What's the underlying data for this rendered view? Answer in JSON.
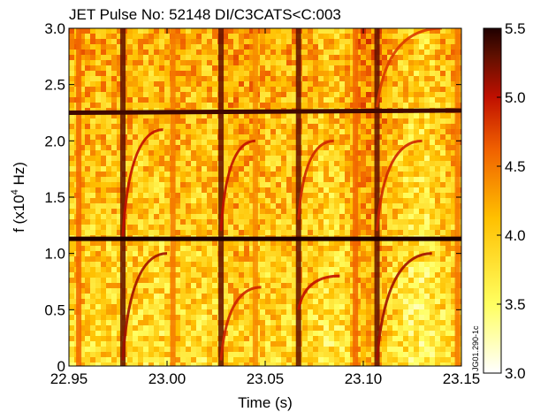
{
  "chart_data": {
    "type": "heatmap",
    "title": "JET Pulse No: 52148 DI/C3CATS<C:003",
    "xlabel": "Time (s)",
    "ylabel_main": "f (x10",
    "ylabel_sup": "4",
    "ylabel_tail": " Hz)",
    "xlim": [
      22.95,
      23.15
    ],
    "ylim": [
      0,
      3.0
    ],
    "x_ticks": [
      {
        "value": 22.95,
        "label": "22.95"
      },
      {
        "value": 23.0,
        "label": "23.00"
      },
      {
        "value": 23.05,
        "label": "23.05"
      },
      {
        "value": 23.1,
        "label": "23.10"
      },
      {
        "value": 23.15,
        "label": "23.15"
      }
    ],
    "y_ticks": [
      {
        "value": 0,
        "label": "0"
      },
      {
        "value": 0.5,
        "label": "0.5"
      },
      {
        "value": 1.0,
        "label": "1.0"
      },
      {
        "value": 1.5,
        "label": "1.5"
      },
      {
        "value": 2.0,
        "label": "2.0"
      },
      {
        "value": 2.5,
        "label": "2.5"
      },
      {
        "value": 3.0,
        "label": "3.0"
      }
    ],
    "colorbar": {
      "range": [
        3.0,
        5.5
      ],
      "ticks": [
        {
          "value": 3.0,
          "label": "3.0"
        },
        {
          "value": 3.5,
          "label": "3.5"
        },
        {
          "value": 4.0,
          "label": "4.0"
        },
        {
          "value": 4.5,
          "label": "4.5"
        },
        {
          "value": 5.0,
          "label": "5.0"
        },
        {
          "value": 5.5,
          "label": "5.5"
        }
      ],
      "colormap": "hot (reversed)"
    },
    "grid": false,
    "annotation": "JG01.290-1c",
    "horizontal_modes": [
      {
        "f_start": 2.25,
        "f_end": 2.27,
        "intensity": 5.4
      },
      {
        "f_start": 1.13,
        "f_end": 1.13,
        "intensity": 5.5
      }
    ],
    "vertical_bursts": [
      {
        "t": 22.955,
        "intensity": 4.6
      },
      {
        "t": 22.9775,
        "intensity": 5.3
      },
      {
        "t": 23.003,
        "intensity": 4.5
      },
      {
        "t": 23.0275,
        "intensity": 5.3
      },
      {
        "t": 23.045,
        "intensity": 4.4
      },
      {
        "t": 23.067,
        "intensity": 5.3
      },
      {
        "t": 23.096,
        "intensity": 4.6
      },
      {
        "t": 23.107,
        "intensity": 5.3
      },
      {
        "t": 23.148,
        "intensity": 4.5
      }
    ],
    "chirp_events": [
      {
        "t": 22.9775,
        "t_end": 23.0,
        "f_start": 0.05,
        "f_end": 1.0,
        "intensity": 5.1
      },
      {
        "t": 22.9775,
        "t_end": 22.998,
        "f_start": 1.15,
        "f_end": 2.1,
        "intensity": 5.0
      },
      {
        "t": 23.0275,
        "t_end": 23.048,
        "f_start": 0.05,
        "f_end": 0.7,
        "intensity": 4.9
      },
      {
        "t": 23.0275,
        "t_end": 23.045,
        "f_start": 1.2,
        "f_end": 2.0,
        "intensity": 5.0
      },
      {
        "t": 23.067,
        "t_end": 23.088,
        "f_start": 0.5,
        "f_end": 0.8,
        "intensity": 5.0
      },
      {
        "t": 23.067,
        "t_end": 23.085,
        "f_start": 1.3,
        "f_end": 2.0,
        "intensity": 4.9
      },
      {
        "t": 23.107,
        "t_end": 23.135,
        "f_start": 0.05,
        "f_end": 1.0,
        "intensity": 5.1
      },
      {
        "t": 23.107,
        "t_end": 23.13,
        "f_start": 1.2,
        "f_end": 2.0,
        "intensity": 4.9
      },
      {
        "t": 23.107,
        "t_end": 23.14,
        "f_start": 2.3,
        "f_end": 3.0,
        "intensity": 4.8
      }
    ]
  }
}
